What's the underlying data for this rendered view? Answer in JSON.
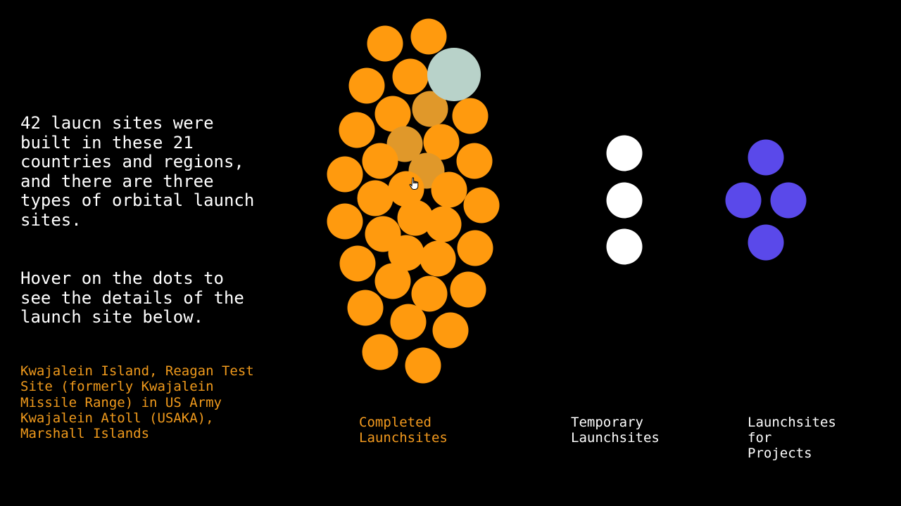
{
  "intro_text": "42 laucn sites were\nbuilt in these 21\ncountries and regions,\nand there are three\ntypes of orbital launch\nsites.",
  "hint_text": "Hover on the dots to\nsee the details of the\nlaunch site below.",
  "selected_site": "Kwajalein Island, Reagan Test\nSite (formerly Kwajalein\nMissile Range) in US Army\nKwajalein Atoll (USAKA),\nMarshall Islands",
  "groups": {
    "completed": {
      "label": "Completed\nLaunchsites",
      "count": 39
    },
    "temporary": {
      "label": "Temporary\nLaunchsites",
      "count": 3
    },
    "projects": {
      "label": "Launchsites\nfor\nProjects",
      "count": 4
    }
  },
  "colors": {
    "completed": "#ff9a0e",
    "completed_faded": "#e0982a",
    "temporary": "#ffffff",
    "projects": "#5a49ea",
    "hovered": "#b8d2c9",
    "detail_text": "#f09a1c",
    "label_completed": "#f39a1e",
    "label_other": "#ffffff"
  },
  "hovered_dot_index": 2,
  "cursor_icon": "pointer-hand-icon"
}
